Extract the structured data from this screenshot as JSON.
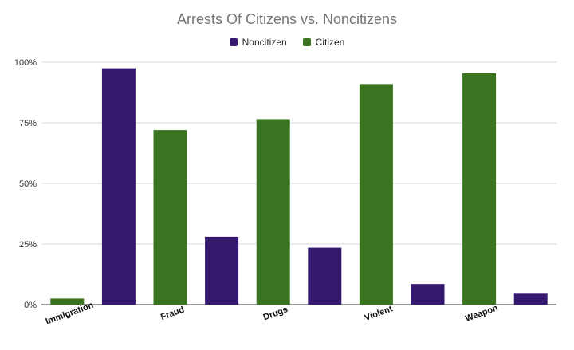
{
  "chart_data": {
    "type": "bar",
    "title": "Arrests Of Citizens vs. Noncitizens",
    "xlabel": "",
    "ylabel": "",
    "ylim": [
      0,
      100
    ],
    "yticks": [
      "0%",
      "25%",
      "50%",
      "75%",
      "100%"
    ],
    "grid": true,
    "legend_position": "top",
    "category_labels": [
      "Immigration",
      "Fraud",
      "Drugs",
      "Violent",
      "Weapon"
    ],
    "series": [
      {
        "name": "Citizen",
        "color": "#3a7420"
      },
      {
        "name": "Noncitizen",
        "color": "#35186f"
      }
    ],
    "bars": [
      {
        "series": "Citizen",
        "value": 2.5
      },
      {
        "series": "Noncitizen",
        "value": 97.5
      },
      {
        "series": "Citizen",
        "value": 72
      },
      {
        "series": "Noncitizen",
        "value": 28
      },
      {
        "series": "Citizen",
        "value": 76.5
      },
      {
        "series": "Noncitizen",
        "value": 23.5
      },
      {
        "series": "Citizen",
        "value": 91
      },
      {
        "series": "Noncitizen",
        "value": 8.5
      },
      {
        "series": "Citizen",
        "value": 95.5
      },
      {
        "series": "Noncitizen",
        "value": 4.5
      }
    ]
  },
  "legend": [
    {
      "label": "Noncitizen",
      "color": "#35186f"
    },
    {
      "label": "Citizen",
      "color": "#3a7420"
    }
  ]
}
